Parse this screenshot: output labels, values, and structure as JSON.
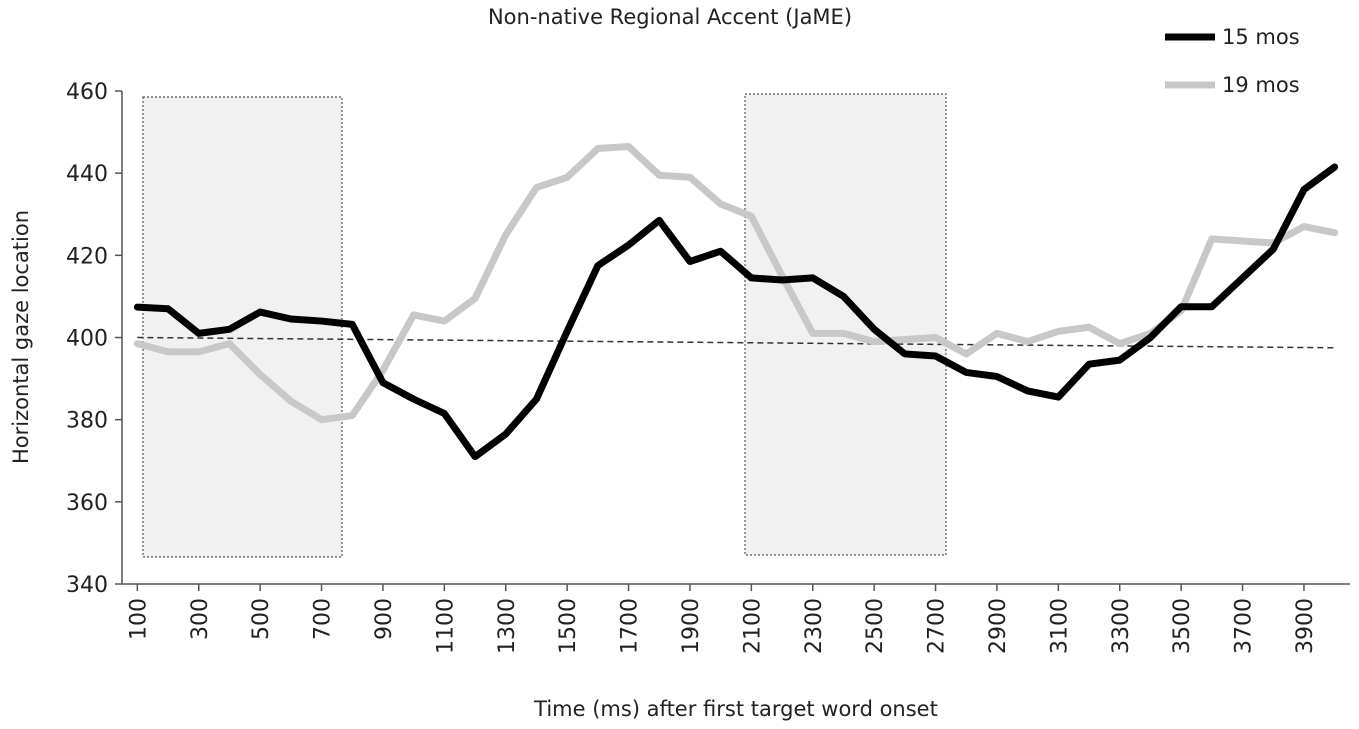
{
  "chart_data": {
    "type": "line",
    "title": "Non-native Regional Accent (JaME)",
    "x_label": "Time (ms) after first target word onset",
    "y_label": "Horizontal gaze location",
    "x": [
      100,
      200,
      300,
      400,
      500,
      600,
      700,
      800,
      900,
      1000,
      1100,
      1200,
      1300,
      1400,
      1500,
      1600,
      1700,
      1800,
      1900,
      2000,
      2100,
      2200,
      2300,
      2400,
      2500,
      2600,
      2700,
      2800,
      2900,
      3000,
      3100,
      3200,
      3300,
      3400,
      3500,
      3600,
      3700,
      3800,
      3900,
      4000
    ],
    "xlim": [
      50,
      4050
    ],
    "xticks": [
      100,
      300,
      500,
      700,
      900,
      1100,
      1300,
      1500,
      1700,
      1900,
      2100,
      2300,
      2500,
      2700,
      2900,
      3100,
      3300,
      3500,
      3700,
      3900
    ],
    "ylim": [
      340,
      460
    ],
    "yticks": [
      340,
      360,
      380,
      400,
      420,
      440,
      460
    ],
    "legend": "top-right",
    "series": [
      {
        "name": "15 mos",
        "color": "#000000",
        "values": [
          407.4,
          407,
          401,
          402,
          406.2,
          404.5,
          404,
          403.2,
          389,
          385,
          381.5,
          371,
          376.5,
          385,
          401.5,
          417.5,
          422.5,
          428.5,
          418.5,
          421,
          414.5,
          414,
          414.5,
          410,
          402,
          396,
          395.5,
          391.5,
          390.5,
          387,
          385.5,
          393.5,
          394.5,
          400,
          407.5,
          407.5,
          414.5,
          421.5,
          436,
          441.5
        ]
      },
      {
        "name": "19 mos",
        "color": "#c8c8c8",
        "values": [
          398.5,
          396.5,
          396.5,
          398.5,
          391,
          384.5,
          380,
          381,
          392,
          405.5,
          404,
          409.5,
          425,
          436.5,
          439,
          446,
          446.5,
          439.5,
          439,
          432.5,
          429.5,
          415,
          401,
          401,
          399,
          399.5,
          400,
          396,
          401,
          399,
          401.5,
          402.5,
          398.5,
          401,
          406.5,
          424,
          423.5,
          423,
          427,
          425.5
        ]
      }
    ],
    "reference_line": {
      "x": [
        100,
        4000
      ],
      "y": [
        400,
        397.5
      ],
      "color": "#333333"
    }
  }
}
